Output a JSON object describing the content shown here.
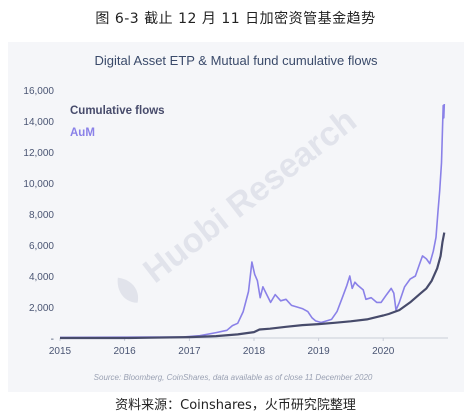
{
  "figure_title": "图 6-3 截止 12 月 11 日加密资管基金趋势",
  "footer": "资料来源：Coinshares，火币研究院整理",
  "watermark": "Huobi Research",
  "chart_data": {
    "type": "line",
    "title": "Digital Asset ETP & Mutual fund cumulative flows",
    "source_note": "Source: Bloomberg, CoinShares, data available as of close 11 December 2020",
    "xlabel": "",
    "ylabel": "",
    "x_tick_labels": [
      "2015",
      "2016",
      "2017",
      "2018",
      "2019",
      "2020"
    ],
    "y_tick_labels": [
      "-",
      "2,000",
      "4,000",
      "6,000",
      "8,000",
      "10,000",
      "12,000",
      "14,000",
      "16,000"
    ],
    "xlim": [
      "2015-01-01",
      "2021-01-01"
    ],
    "ylim": [
      0,
      16000
    ],
    "grid": false,
    "legend_position": "top-left",
    "colors": {
      "cumulative": "#474b6b",
      "aum": "#8a81e8",
      "panel_bg": "#f5f6f9",
      "title": "#3a4a6a"
    },
    "series": [
      {
        "name": "Cumulative flows",
        "color": "#474b6b",
        "points": [
          [
            "2015-01-01",
            0
          ],
          [
            "2016-01-01",
            0
          ],
          [
            "2016-06-01",
            20
          ],
          [
            "2017-01-01",
            60
          ],
          [
            "2017-06-01",
            120
          ],
          [
            "2017-10-01",
            230
          ],
          [
            "2017-12-01",
            330
          ],
          [
            "2018-01-01",
            380
          ],
          [
            "2018-02-01",
            550
          ],
          [
            "2018-04-01",
            600
          ],
          [
            "2018-07-01",
            720
          ],
          [
            "2018-10-01",
            830
          ],
          [
            "2019-01-01",
            900
          ],
          [
            "2019-04-01",
            980
          ],
          [
            "2019-07-01",
            1080
          ],
          [
            "2019-10-01",
            1200
          ],
          [
            "2020-01-01",
            1450
          ],
          [
            "2020-02-01",
            1550
          ],
          [
            "2020-04-01",
            1800
          ],
          [
            "2020-06-01",
            2300
          ],
          [
            "2020-08-01",
            2900
          ],
          [
            "2020-09-01",
            3200
          ],
          [
            "2020-10-01",
            3700
          ],
          [
            "2020-11-01",
            4500
          ],
          [
            "2020-11-20",
            5300
          ],
          [
            "2020-12-01",
            6200
          ],
          [
            "2020-12-11",
            6800
          ]
        ]
      },
      {
        "name": "AuM",
        "color": "#8a81e8",
        "points": [
          [
            "2015-01-01",
            40
          ],
          [
            "2016-01-01",
            50
          ],
          [
            "2016-06-01",
            60
          ],
          [
            "2016-12-01",
            70
          ],
          [
            "2017-03-01",
            150
          ],
          [
            "2017-06-01",
            350
          ],
          [
            "2017-08-01",
            500
          ],
          [
            "2017-09-01",
            800
          ],
          [
            "2017-10-01",
            950
          ],
          [
            "2017-11-01",
            1700
          ],
          [
            "2017-12-01",
            3000
          ],
          [
            "2017-12-20",
            4900
          ],
          [
            "2018-01-05",
            4100
          ],
          [
            "2018-01-20",
            3700
          ],
          [
            "2018-02-05",
            2600
          ],
          [
            "2018-02-20",
            3300
          ],
          [
            "2018-03-10",
            2900
          ],
          [
            "2018-04-05",
            2300
          ],
          [
            "2018-05-01",
            2800
          ],
          [
            "2018-06-01",
            2400
          ],
          [
            "2018-07-01",
            2500
          ],
          [
            "2018-08-01",
            2100
          ],
          [
            "2018-09-01",
            2000
          ],
          [
            "2018-10-01",
            1900
          ],
          [
            "2018-11-01",
            1700
          ],
          [
            "2018-11-25",
            1300
          ],
          [
            "2018-12-15",
            1100
          ],
          [
            "2019-01-15",
            1000
          ],
          [
            "2019-02-15",
            1100
          ],
          [
            "2019-03-15",
            1200
          ],
          [
            "2019-04-15",
            1700
          ],
          [
            "2019-05-15",
            2600
          ],
          [
            "2019-06-10",
            3400
          ],
          [
            "2019-06-26",
            4000
          ],
          [
            "2019-07-10",
            3200
          ],
          [
            "2019-07-25",
            3600
          ],
          [
            "2019-08-10",
            3400
          ],
          [
            "2019-09-10",
            3100
          ],
          [
            "2019-09-25",
            2500
          ],
          [
            "2019-10-25",
            2600
          ],
          [
            "2019-11-25",
            2300
          ],
          [
            "2019-12-20",
            2300
          ],
          [
            "2020-01-20",
            2800
          ],
          [
            "2020-02-15",
            3200
          ],
          [
            "2020-03-01",
            2900
          ],
          [
            "2020-03-13",
            1800
          ],
          [
            "2020-04-01",
            2300
          ],
          [
            "2020-05-01",
            3300
          ],
          [
            "2020-06-01",
            3800
          ],
          [
            "2020-07-01",
            4000
          ],
          [
            "2020-07-25",
            4800
          ],
          [
            "2020-08-10",
            5300
          ],
          [
            "2020-09-01",
            5100
          ],
          [
            "2020-09-20",
            4800
          ],
          [
            "2020-10-10",
            5600
          ],
          [
            "2020-10-25",
            6500
          ],
          [
            "2020-11-05",
            8100
          ],
          [
            "2020-11-15",
            9500
          ],
          [
            "2020-11-25",
            11300
          ],
          [
            "2020-12-01",
            13500
          ],
          [
            "2020-12-05",
            15000
          ],
          [
            "2020-12-08",
            14200
          ],
          [
            "2020-12-11",
            15100
          ]
        ]
      }
    ]
  }
}
